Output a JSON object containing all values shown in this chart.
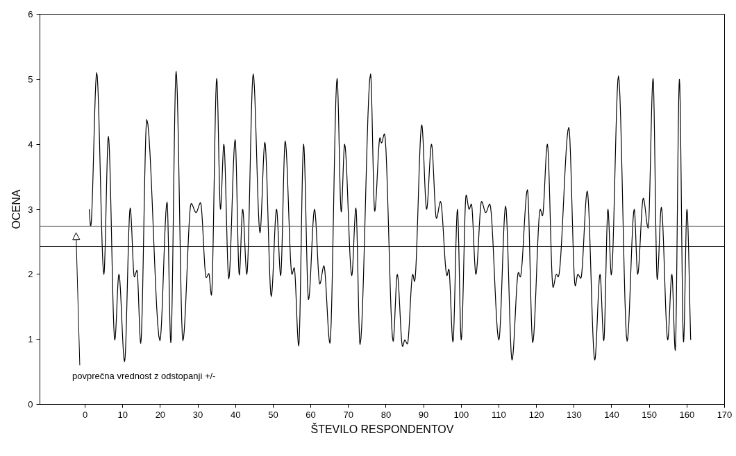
{
  "chart_data": {
    "type": "line",
    "xlabel": "ŠTEVILO RESPONDENTOV",
    "ylabel": "OCENA",
    "x": [
      1.1,
      1.5,
      3.1,
      5.0,
      6.2,
      7.9,
      9,
      10.5,
      12,
      13.1,
      13.8,
      14.8,
      16.4,
      19.9,
      21.8,
      22.8,
      24.2,
      26,
      28.2,
      29.5,
      30.7,
      32.2,
      32.9,
      33.6,
      35,
      36,
      36.9,
      38.2,
      39.9,
      41,
      41.9,
      43,
      44.7,
      46.5,
      47.8,
      49.5,
      50.9,
      52,
      53.2,
      55,
      55.6,
      56.8,
      58.1,
      59.4,
      61,
      62.4,
      63.5,
      65.1,
      67,
      68.1,
      69,
      70.9,
      72,
      73.1,
      75.9,
      77,
      78.4,
      78.8,
      79.6,
      81.9,
      83,
      84.4,
      85,
      85.7,
      87.1,
      87.6,
      89.5,
      90.8,
      92.1,
      93.4,
      94.5,
      96.2,
      96.7,
      97.8,
      99,
      100,
      101.3,
      102.1,
      102.7,
      103.9,
      105.4,
      106.5,
      107.6,
      110,
      111.8,
      113.5,
      115.2,
      115.7,
      117.6,
      119,
      121,
      121.6,
      122.9,
      124.4,
      125.3,
      125.8,
      128.6,
      130.3,
      131,
      131.8,
      133.5,
      135.5,
      136.9,
      137.9,
      139,
      139.9,
      141.8,
      144.1,
      146,
      146.9,
      148.4,
      149.7,
      151,
      152.1,
      153.2,
      154.9,
      156,
      156.9,
      158,
      159.1,
      160,
      161
    ],
    "series": [
      {
        "color": "#000000",
        "values": [
          3.0,
          2.74,
          5.1,
          2.0,
          4.12,
          0.99,
          2.0,
          0.66,
          3.02,
          1.96,
          2.06,
          0.94,
          4.38,
          0.98,
          3.11,
          0.95,
          5.12,
          0.98,
          3.09,
          2.95,
          3.1,
          1.95,
          2.01,
          1.68,
          5.01,
          3.0,
          4.0,
          1.93,
          4.07,
          1.99,
          3.0,
          2.0,
          5.08,
          2.64,
          4.03,
          1.66,
          3.0,
          1.98,
          4.05,
          2.0,
          2.1,
          0.9,
          4.0,
          1.61,
          3.0,
          1.85,
          2.13,
          0.94,
          5.01,
          2.96,
          4.0,
          1.98,
          3.02,
          0.92,
          5.08,
          2.97,
          4.1,
          4.02,
          4.16,
          0.97,
          2.0,
          0.89,
          0.99,
          0.93,
          2.0,
          1.89,
          4.3,
          3.0,
          4.0,
          2.86,
          3.12,
          1.98,
          2.08,
          0.96,
          3.0,
          0.99,
          3.22,
          3.0,
          3.08,
          2.0,
          3.12,
          2.95,
          3.08,
          0.99,
          3.05,
          0.68,
          2.03,
          1.96,
          3.3,
          0.95,
          3.0,
          2.9,
          4.0,
          1.8,
          2.0,
          1.96,
          4.26,
          1.82,
          2.0,
          1.94,
          3.28,
          0.68,
          2.0,
          0.98,
          3.0,
          1.99,
          5.05,
          0.97,
          3.0,
          2.0,
          3.17,
          2.71,
          5.01,
          1.92,
          3.03,
          0.99,
          2.0,
          0.83,
          5.0,
          0.96,
          3.0,
          0.99
        ]
      }
    ],
    "xlim": [
      -12,
      170
    ],
    "xticks": [
      0,
      10,
      20,
      30,
      40,
      50,
      60,
      70,
      80,
      90,
      100,
      110,
      120,
      130,
      140,
      150,
      160,
      170
    ],
    "ylim": [
      0,
      6
    ],
    "yticks": [
      0,
      1,
      2,
      3,
      4,
      5,
      6
    ],
    "grid": false,
    "marker": "none",
    "line_style": "solid",
    "ref_lines": [
      {
        "axis": "y",
        "value": 2.74,
        "color": "#555555"
      },
      {
        "axis": "y",
        "value": 2.43,
        "color": "#000000"
      }
    ],
    "annotations": [
      "povprečna vrednost z odstopanji +/-"
    ]
  }
}
